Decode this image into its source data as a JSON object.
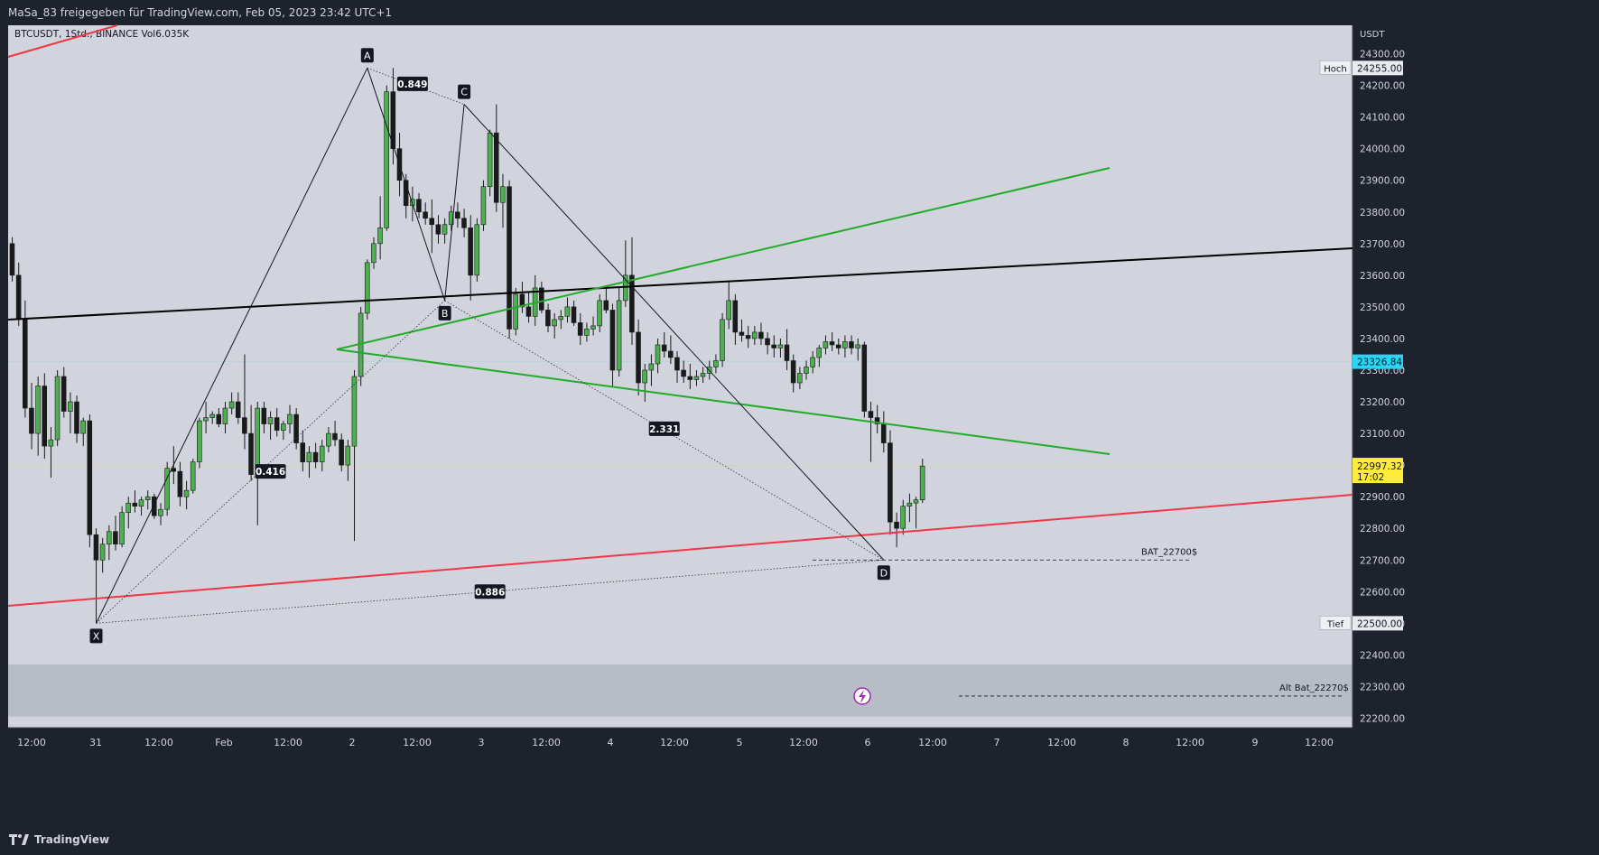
{
  "header": {
    "share_text": "MaSa_83 freigegeben für TradingView.com, Feb 05, 2023 23:42 UTC+1"
  },
  "legend": {
    "symbol_text": "BTCUSDT, 1Std., BINANCE",
    "volume_text": "Vol6.035K"
  },
  "footer": {
    "brand": "TradingView"
  },
  "colors": {
    "up": "#4caf50",
    "down": "#1a1a1a",
    "trend_red": "#f23645",
    "trend_green": "#22ab2a",
    "trend_black": "#000000",
    "price_tag": "#2ad4f5",
    "last_tag": "#ffeb3b",
    "pane_bg": "#d1d4dc",
    "zone_bg": "#b8bcc6"
  },
  "chart_data": {
    "type": "candlestick",
    "price_axis": {
      "unit": "USDT",
      "ticks": [
        "24300.00",
        "24200.00",
        "24100.00",
        "24000.00",
        "23900.00",
        "23800.00",
        "23700.00",
        "23600.00",
        "23500.00",
        "23400.00",
        "23300.00",
        "23200.00",
        "23100.00",
        "23000.00",
        "22900.00",
        "22800.00",
        "22700.00",
        "22600.00",
        "22500.00",
        "22400.00",
        "22300.00",
        "22200.00"
      ],
      "range": [
        22170,
        24390
      ]
    },
    "time_axis": {
      "ticks": [
        "12:00",
        "31",
        "12:00",
        "Feb",
        "12:00",
        "2",
        "12:00",
        "3",
        "12:00",
        "4",
        "12:00",
        "5",
        "12:00",
        "6",
        "12:00",
        "7",
        "12:00",
        "8",
        "12:00",
        "9",
        "12:00"
      ]
    },
    "price_tags": {
      "high_label": "Hoch",
      "high_value": "24255.00",
      "low_label": "Tief",
      "low_value": "22500.00",
      "crosshair_value": "23326.84",
      "last_value": "22997.32",
      "countdown": "17:02"
    },
    "pattern_points": [
      {
        "label": "X",
        "bar": 13,
        "price": 22500
      },
      {
        "label": "A",
        "bar": 55,
        "price": 24255
      },
      {
        "label": "B",
        "bar": 67,
        "price": 23520
      },
      {
        "label": "C",
        "bar": 70,
        "price": 24140
      },
      {
        "label": "D",
        "bar": 135,
        "price": 22700
      }
    ],
    "ratios": [
      {
        "text": "0.849",
        "bar": 62,
        "price": 24205
      },
      {
        "text": "0.416",
        "bar": 40,
        "price": 22980
      },
      {
        "text": "2.331",
        "bar": 101,
        "price": 23115
      },
      {
        "text": "0.886",
        "bar": 74,
        "price": 22600
      }
    ],
    "annotations": {
      "bat": "BAT_22700$",
      "alt_bat": "Alt Bat_22270$"
    },
    "candles": [
      [
        23700,
        23720,
        23580,
        23600
      ],
      [
        23600,
        23640,
        23440,
        23460
      ],
      [
        23460,
        23520,
        23150,
        23180
      ],
      [
        23180,
        23260,
        23050,
        23100
      ],
      [
        23100,
        23280,
        23030,
        23250
      ],
      [
        23250,
        23290,
        23020,
        23060
      ],
      [
        23060,
        23120,
        22960,
        23080
      ],
      [
        23080,
        23300,
        23060,
        23280
      ],
      [
        23280,
        23310,
        23150,
        23170
      ],
      [
        23170,
        23230,
        23100,
        23200
      ],
      [
        23200,
        23220,
        23070,
        23100
      ],
      [
        23100,
        23150,
        23060,
        23140
      ],
      [
        23140,
        23160,
        22740,
        22780
      ],
      [
        22780,
        22800,
        22500,
        22700
      ],
      [
        22700,
        22770,
        22660,
        22750
      ],
      [
        22750,
        22810,
        22700,
        22790
      ],
      [
        22790,
        22840,
        22730,
        22750
      ],
      [
        22750,
        22870,
        22740,
        22850
      ],
      [
        22850,
        22900,
        22800,
        22880
      ],
      [
        22880,
        22920,
        22850,
        22870
      ],
      [
        22870,
        22900,
        22840,
        22890
      ],
      [
        22890,
        22920,
        22860,
        22900
      ],
      [
        22900,
        22910,
        22830,
        22840
      ],
      [
        22840,
        22880,
        22810,
        22860
      ],
      [
        22860,
        23010,
        22840,
        22990
      ],
      [
        22990,
        23060,
        22940,
        22980
      ],
      [
        22980,
        23010,
        22870,
        22900
      ],
      [
        22900,
        22950,
        22860,
        22920
      ],
      [
        22920,
        23020,
        22910,
        23010
      ],
      [
        23010,
        23150,
        22990,
        23140
      ],
      [
        23140,
        23200,
        23100,
        23150
      ],
      [
        23150,
        23170,
        23130,
        23160
      ],
      [
        23160,
        23180,
        23120,
        23130
      ],
      [
        23130,
        23200,
        23100,
        23180
      ],
      [
        23180,
        23230,
        23160,
        23200
      ],
      [
        23200,
        23230,
        23130,
        23150
      ],
      [
        23150,
        23350,
        23050,
        23100
      ],
      [
        23100,
        23190,
        22950,
        22970
      ],
      [
        22970,
        23200,
        22810,
        23180
      ],
      [
        23180,
        23200,
        23100,
        23130
      ],
      [
        23130,
        23170,
        23080,
        23150
      ],
      [
        23150,
        23180,
        23090,
        23110
      ],
      [
        23110,
        23140,
        23080,
        23130
      ],
      [
        23130,
        23190,
        23100,
        23160
      ],
      [
        23160,
        23180,
        23050,
        23070
      ],
      [
        23070,
        23110,
        22980,
        23010
      ],
      [
        23010,
        23060,
        22960,
        23040
      ],
      [
        23040,
        23070,
        22990,
        23010
      ],
      [
        23010,
        23080,
        22980,
        23060
      ],
      [
        23060,
        23120,
        23040,
        23100
      ],
      [
        23100,
        23140,
        23060,
        23080
      ],
      [
        23080,
        23100,
        22980,
        23000
      ],
      [
        23000,
        23080,
        22950,
        23060
      ],
      [
        23060,
        23300,
        22760,
        23280
      ],
      [
        23280,
        23500,
        23250,
        23480
      ],
      [
        23480,
        23650,
        23460,
        23640
      ],
      [
        23640,
        23720,
        23620,
        23700
      ],
      [
        23700,
        23850,
        23650,
        23750
      ],
      [
        23750,
        24200,
        23740,
        24180
      ],
      [
        24180,
        24255,
        23950,
        24000
      ],
      [
        24000,
        24050,
        23850,
        23900
      ],
      [
        23900,
        23920,
        23780,
        23820
      ],
      [
        23820,
        23880,
        23770,
        23840
      ],
      [
        23840,
        23860,
        23780,
        23800
      ],
      [
        23800,
        23830,
        23760,
        23780
      ],
      [
        23780,
        23840,
        23670,
        23760
      ],
      [
        23760,
        23790,
        23700,
        23730
      ],
      [
        23730,
        23780,
        23700,
        23760
      ],
      [
        23760,
        23820,
        23740,
        23800
      ],
      [
        23800,
        23830,
        23750,
        23780
      ],
      [
        23780,
        23810,
        23720,
        23750
      ],
      [
        23750,
        23790,
        23520,
        23600
      ],
      [
        23600,
        23780,
        23580,
        23760
      ],
      [
        23760,
        23900,
        23740,
        23880
      ],
      [
        23880,
        24060,
        23850,
        24050
      ],
      [
        24050,
        24140,
        23800,
        23830
      ],
      [
        23830,
        23920,
        23750,
        23880
      ],
      [
        23880,
        23900,
        23400,
        23430
      ],
      [
        23430,
        23560,
        23410,
        23540
      ],
      [
        23540,
        23580,
        23480,
        23500
      ],
      [
        23500,
        23550,
        23450,
        23470
      ],
      [
        23470,
        23600,
        23440,
        23560
      ],
      [
        23560,
        23580,
        23480,
        23490
      ],
      [
        23490,
        23510,
        23420,
        23440
      ],
      [
        23440,
        23480,
        23400,
        23460
      ],
      [
        23460,
        23490,
        23430,
        23470
      ],
      [
        23470,
        23530,
        23450,
        23500
      ],
      [
        23500,
        23520,
        23440,
        23450
      ],
      [
        23450,
        23480,
        23380,
        23410
      ],
      [
        23410,
        23450,
        23390,
        23430
      ],
      [
        23430,
        23470,
        23410,
        23440
      ],
      [
        23440,
        23540,
        23420,
        23520
      ],
      [
        23520,
        23560,
        23480,
        23490
      ],
      [
        23490,
        23510,
        23250,
        23300
      ],
      [
        23300,
        23560,
        23280,
        23520
      ],
      [
        23520,
        23710,
        23500,
        23600
      ],
      [
        23600,
        23720,
        23380,
        23420
      ],
      [
        23420,
        23460,
        23220,
        23260
      ],
      [
        23260,
        23320,
        23200,
        23300
      ],
      [
        23300,
        23350,
        23250,
        23320
      ],
      [
        23320,
        23400,
        23290,
        23380
      ],
      [
        23380,
        23420,
        23340,
        23360
      ],
      [
        23360,
        23410,
        23320,
        23340
      ],
      [
        23340,
        23360,
        23260,
        23300
      ],
      [
        23300,
        23330,
        23260,
        23280
      ],
      [
        23280,
        23320,
        23240,
        23270
      ],
      [
        23270,
        23300,
        23250,
        23280
      ],
      [
        23280,
        23310,
        23260,
        23290
      ],
      [
        23290,
        23330,
        23270,
        23310
      ],
      [
        23310,
        23350,
        23290,
        23330
      ],
      [
        23330,
        23480,
        23310,
        23460
      ],
      [
        23460,
        23580,
        23430,
        23520
      ],
      [
        23520,
        23540,
        23380,
        23420
      ],
      [
        23420,
        23460,
        23390,
        23410
      ],
      [
        23410,
        23440,
        23370,
        23400
      ],
      [
        23400,
        23440,
        23380,
        23420
      ],
      [
        23420,
        23450,
        23380,
        23400
      ],
      [
        23400,
        23420,
        23350,
        23380
      ],
      [
        23380,
        23410,
        23340,
        23370
      ],
      [
        23370,
        23400,
        23340,
        23380
      ],
      [
        23380,
        23430,
        23300,
        23330
      ],
      [
        23330,
        23350,
        23230,
        23260
      ],
      [
        23260,
        23310,
        23240,
        23290
      ],
      [
        23290,
        23330,
        23270,
        23310
      ],
      [
        23310,
        23360,
        23290,
        23340
      ],
      [
        23340,
        23380,
        23310,
        23370
      ],
      [
        23370,
        23410,
        23350,
        23390
      ],
      [
        23390,
        23420,
        23360,
        23380
      ],
      [
        23380,
        23400,
        23350,
        23370
      ],
      [
        23370,
        23410,
        23340,
        23390
      ],
      [
        23390,
        23410,
        23350,
        23370
      ],
      [
        23370,
        23400,
        23330,
        23380
      ],
      [
        23380,
        23390,
        23150,
        23170
      ],
      [
        23170,
        23200,
        23010,
        23150
      ],
      [
        23150,
        23190,
        23100,
        23130
      ],
      [
        23130,
        23170,
        23040,
        23070
      ],
      [
        23070,
        23110,
        22780,
        22820
      ],
      [
        22820,
        22850,
        22740,
        22800
      ],
      [
        22800,
        22890,
        22780,
        22870
      ],
      [
        22870,
        22910,
        22820,
        22880
      ],
      [
        22880,
        22900,
        22800,
        22890
      ],
      [
        22890,
        23020,
        22880,
        22997
      ]
    ]
  }
}
